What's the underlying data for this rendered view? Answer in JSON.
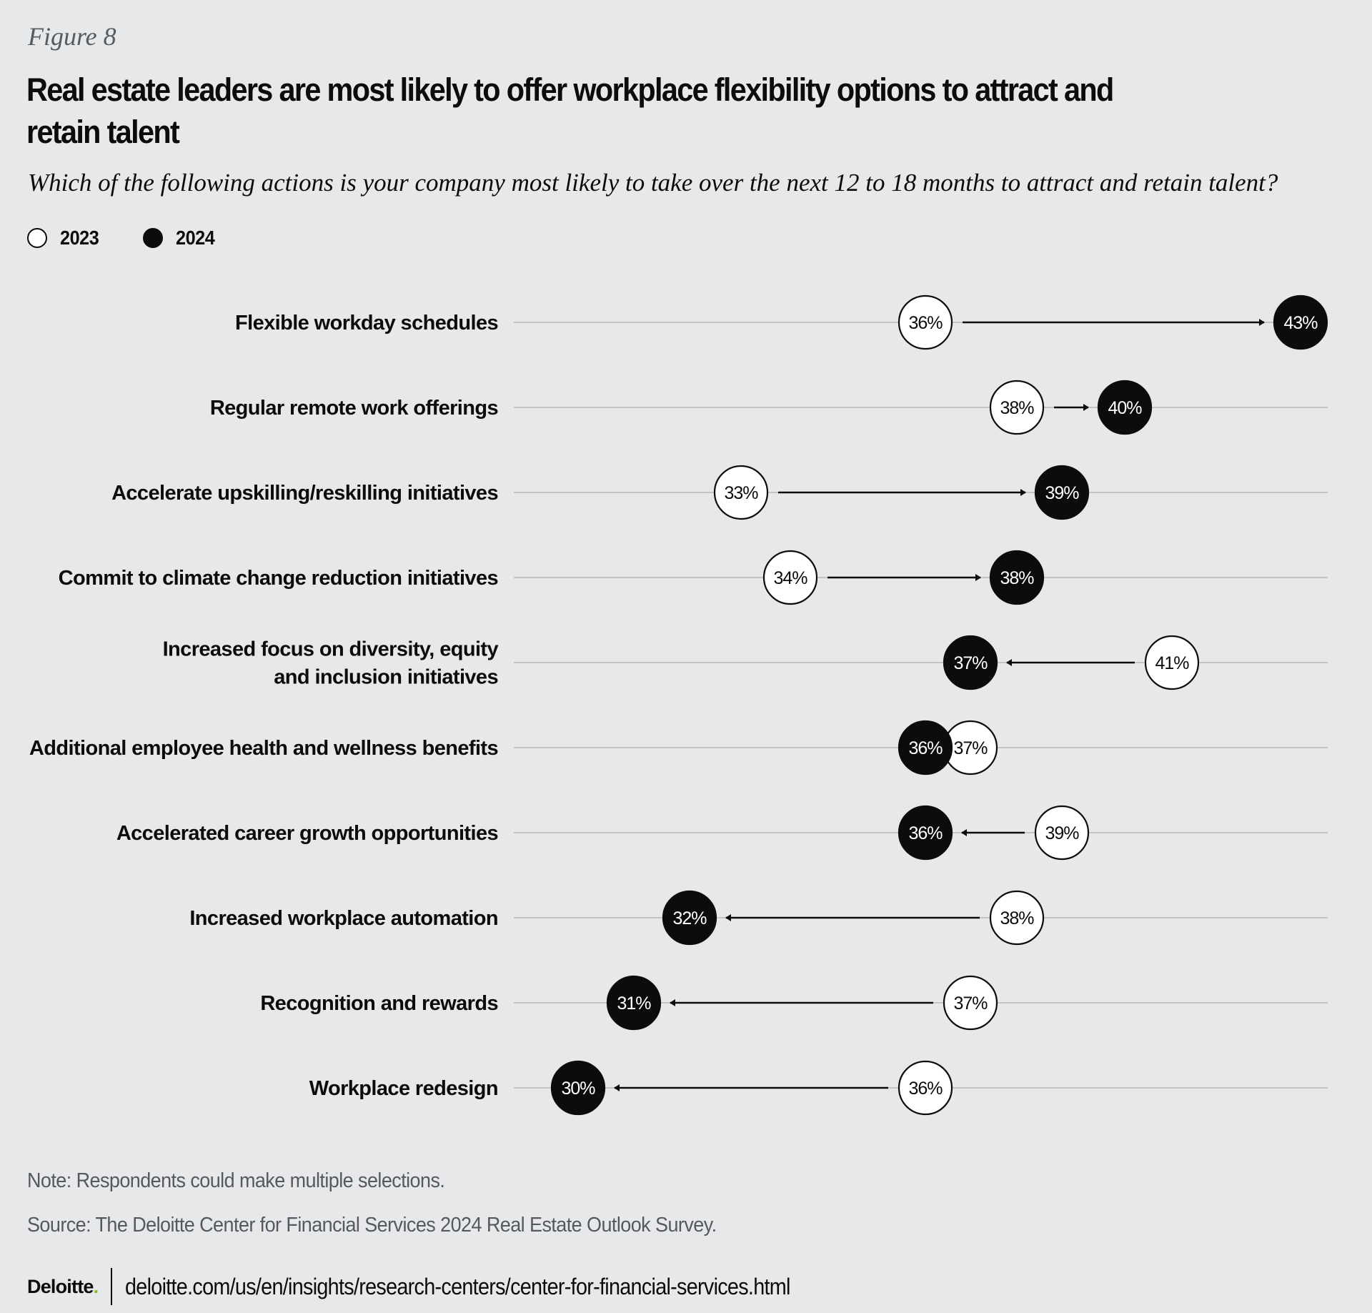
{
  "figure_label": "Figure 8",
  "colors": {
    "background": "#e7e8ea",
    "year_2023_fill": "#ffffff",
    "year_2024_fill": "#0a0c0d",
    "gridline": "#c3c4c6",
    "text": "#0a0c0d",
    "muted_text": "#55595d",
    "brand_dot": "#86bc25"
  },
  "legend": [
    {
      "label": "2023",
      "style": "open-circle"
    },
    {
      "label": "2024",
      "style": "filled-circle"
    }
  ],
  "note": "Note: Respondents could make multiple selections.",
  "source": "Source: The Deloitte Center for Financial Services 2024 Real Estate Outlook Survey.",
  "footer": {
    "brand": "Deloitte",
    "brand_dot": ".",
    "url": "deloitte.com/us/en/insights/research-centers/center-for-financial-services.html"
  },
  "chart_data": {
    "type": "dumbbell",
    "title": "Real estate leaders are most likely to offer workplace flexibility options to attract and retain talent",
    "subtitle": "Which of the following actions is your company most likely to take over the next 12 to 18 months to attract and retain talent?",
    "xlabel": "",
    "ylabel": "",
    "unit": "%",
    "legend_position": "top-left",
    "grid": true,
    "categories": [
      [
        "Flexible workday schedules"
      ],
      [
        "Regular remote work offerings"
      ],
      [
        "Accelerate upskilling/reskilling initiatives"
      ],
      [
        "Commit to climate change reduction initiatives"
      ],
      [
        "Increased focus on diversity, equity",
        "and inclusion  initiatives"
      ],
      [
        "Additional employee health and wellness benefits"
      ],
      [
        "Accelerated career growth opportunities"
      ],
      [
        "Increased workplace automation"
      ],
      [
        "Recognition and rewards"
      ],
      [
        "Workplace redesign"
      ]
    ],
    "series": [
      {
        "name": "2023",
        "values": [
          36,
          38,
          33,
          34,
          41,
          37,
          39,
          38,
          37,
          36
        ]
      },
      {
        "name": "2024",
        "values": [
          43,
          40,
          39,
          38,
          37,
          36,
          36,
          32,
          31,
          30
        ]
      }
    ],
    "value_labels": {
      "2023": [
        "36%",
        "38%",
        "33%",
        "34%",
        "41%",
        "37%",
        "39%",
        "38%",
        "37%",
        "36%"
      ],
      "2024": [
        "43%",
        "40%",
        "39%",
        "38%",
        "37%",
        "36%",
        "36%",
        "32%",
        "31%",
        "30%"
      ]
    }
  }
}
